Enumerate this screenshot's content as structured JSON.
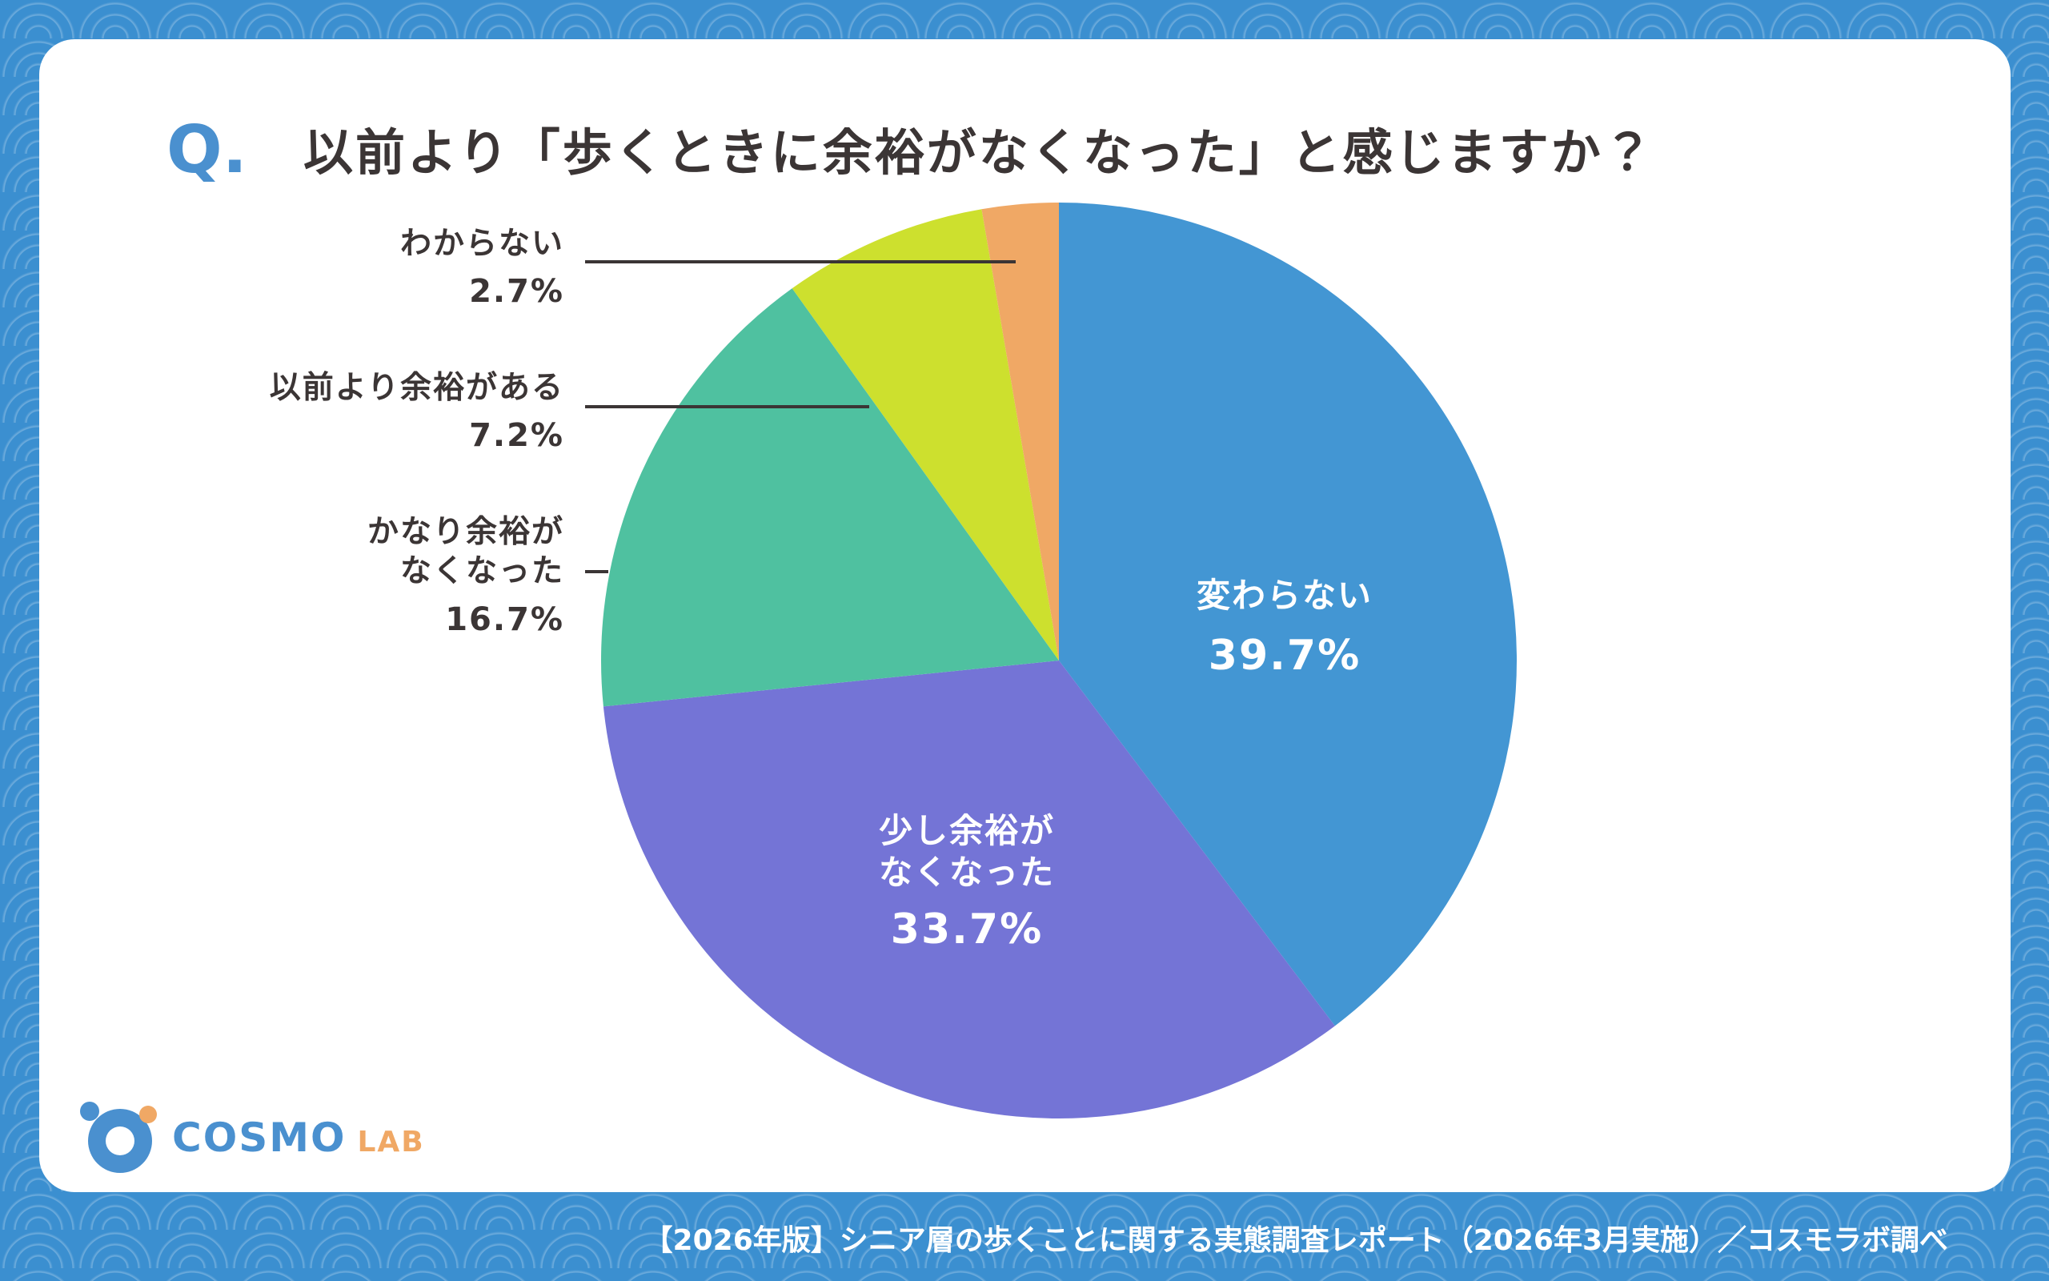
{
  "title": {
    "q": "Q.",
    "text": "以前より「歩くときに余裕がなくなった」と感じますか？"
  },
  "chart_data": {
    "type": "pie",
    "categories": [
      "変わらない",
      "少し余裕が\nなくなった",
      "かなり余裕が\nなくなった",
      "以前より余裕がある",
      "わからない"
    ],
    "values": [
      39.7,
      33.7,
      16.7,
      7.2,
      2.7
    ],
    "value_labels": [
      "39.7%",
      "33.7%",
      "16.7%",
      "7.2%",
      "2.7%"
    ],
    "colors": [
      "#4396d3",
      "#7474d6",
      "#4fc1a0",
      "#cde02e",
      "#f0a865"
    ]
  },
  "logo": {
    "mark": "COSMO",
    "sub": "LAB"
  },
  "footer": "【2026年版】シニア層の歩くことに関する実態調査レポート（2026年3月実施）／コスモラボ調べ"
}
